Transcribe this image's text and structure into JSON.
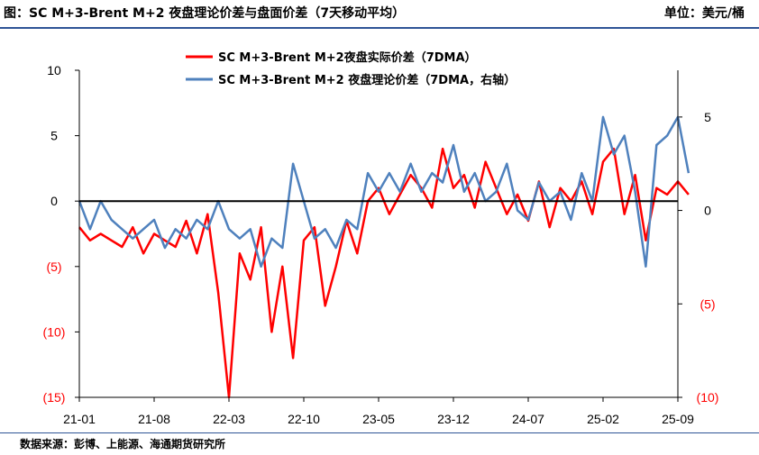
{
  "header": {
    "title": "图：SC M+3-Brent M+2 夜盘理论价差与盘面价差（7天移动平均）",
    "unit": "单位：美元/桶"
  },
  "footer": {
    "source": "数据来源：彭博、上能源、海通期货研究所"
  },
  "colors": {
    "actual": "#ff0000",
    "theory": "#4f81bd",
    "axis": "#000000",
    "neg_tick": "#ff0000",
    "rule": "#2f5496"
  },
  "chart_data": {
    "type": "line",
    "x_ticks": [
      "21-01",
      "21-08",
      "22-03",
      "22-10",
      "23-05",
      "23-12",
      "24-07",
      "25-02",
      "25-09"
    ],
    "y_left": {
      "ticks": [
        "10",
        "5",
        "0",
        "(5)",
        "(10)",
        "(15)"
      ],
      "ylim": [
        -15,
        10
      ]
    },
    "y_right": {
      "ticks": [
        "5",
        "0",
        "(5)",
        "(10)"
      ],
      "ylim": [
        -10,
        7.5
      ]
    },
    "series": [
      {
        "name": "SC M+3-Brent M+2夜盘实际价差（7DMA）",
        "axis": "left",
        "x": [
          "21-01",
          "21-02",
          "21-03",
          "21-04",
          "21-05",
          "21-06",
          "21-07",
          "21-08",
          "21-09",
          "21-10",
          "21-11",
          "21-12",
          "22-01",
          "22-02",
          "22-03",
          "22-04",
          "22-05",
          "22-06",
          "22-07",
          "22-08",
          "22-09",
          "22-10",
          "22-11",
          "22-12",
          "23-01",
          "23-02",
          "23-03",
          "23-04",
          "23-05",
          "23-06",
          "23-07",
          "23-08",
          "23-09",
          "23-10",
          "23-11",
          "23-12",
          "24-01",
          "24-02",
          "24-03",
          "24-04",
          "24-05",
          "24-06",
          "24-07",
          "24-08",
          "24-09",
          "24-10",
          "24-11",
          "24-12",
          "25-01",
          "25-02",
          "25-03",
          "25-04",
          "25-05",
          "25-06",
          "25-07",
          "25-08",
          "25-09",
          "25-10"
        ],
        "values": [
          -2,
          -3,
          -2.5,
          -3,
          -3.5,
          -2,
          -4,
          -2.5,
          -3,
          -3.5,
          -1.5,
          -4,
          -1,
          -7,
          -15,
          -4,
          -6,
          -2,
          -10,
          -5,
          -12,
          -3,
          -2,
          -8,
          -5,
          -1.5,
          -4,
          0,
          1,
          -1,
          0.5,
          2,
          1,
          -0.5,
          4,
          1,
          2,
          -0.5,
          3,
          1,
          -1,
          0.5,
          -1.5,
          1.5,
          -2,
          1,
          0,
          1.5,
          -1,
          3,
          4,
          -1,
          2,
          -3,
          1,
          0.5,
          1.5,
          0.5
        ]
      },
      {
        "name": "SC M+3-Brent M+2 夜盘理论价差（7DMA，右轴）",
        "axis": "right",
        "x": [
          "21-01",
          "21-02",
          "21-03",
          "21-04",
          "21-05",
          "21-06",
          "21-07",
          "21-08",
          "21-09",
          "21-10",
          "21-11",
          "21-12",
          "22-01",
          "22-02",
          "22-03",
          "22-04",
          "22-05",
          "22-06",
          "22-07",
          "22-08",
          "22-09",
          "22-10",
          "22-11",
          "22-12",
          "23-01",
          "23-02",
          "23-03",
          "23-04",
          "23-05",
          "23-06",
          "23-07",
          "23-08",
          "23-09",
          "23-10",
          "23-11",
          "23-12",
          "24-01",
          "24-02",
          "24-03",
          "24-04",
          "24-05",
          "24-06",
          "24-07",
          "24-08",
          "24-09",
          "24-10",
          "24-11",
          "24-12",
          "25-01",
          "25-02",
          "25-03",
          "25-04",
          "25-05",
          "25-06",
          "25-07",
          "25-08",
          "25-09",
          "25-10"
        ],
        "values": [
          0.5,
          -1,
          0.5,
          -0.5,
          -1,
          -1.5,
          -1,
          -0.5,
          -2,
          -1,
          -1.5,
          -0.5,
          -1,
          0.5,
          -1,
          -1.5,
          -1,
          -3,
          -1.5,
          -2,
          2.5,
          0.5,
          -1.5,
          -1,
          -2,
          -0.5,
          -1,
          2,
          1,
          2,
          1,
          2.5,
          1,
          2,
          1.5,
          3.5,
          1,
          2,
          0.5,
          1,
          2.5,
          0,
          -0.5,
          1.5,
          0.5,
          1,
          -0.5,
          2,
          0.5,
          5,
          3,
          4,
          1,
          -3,
          3.5,
          4,
          5,
          2
        ]
      }
    ]
  }
}
